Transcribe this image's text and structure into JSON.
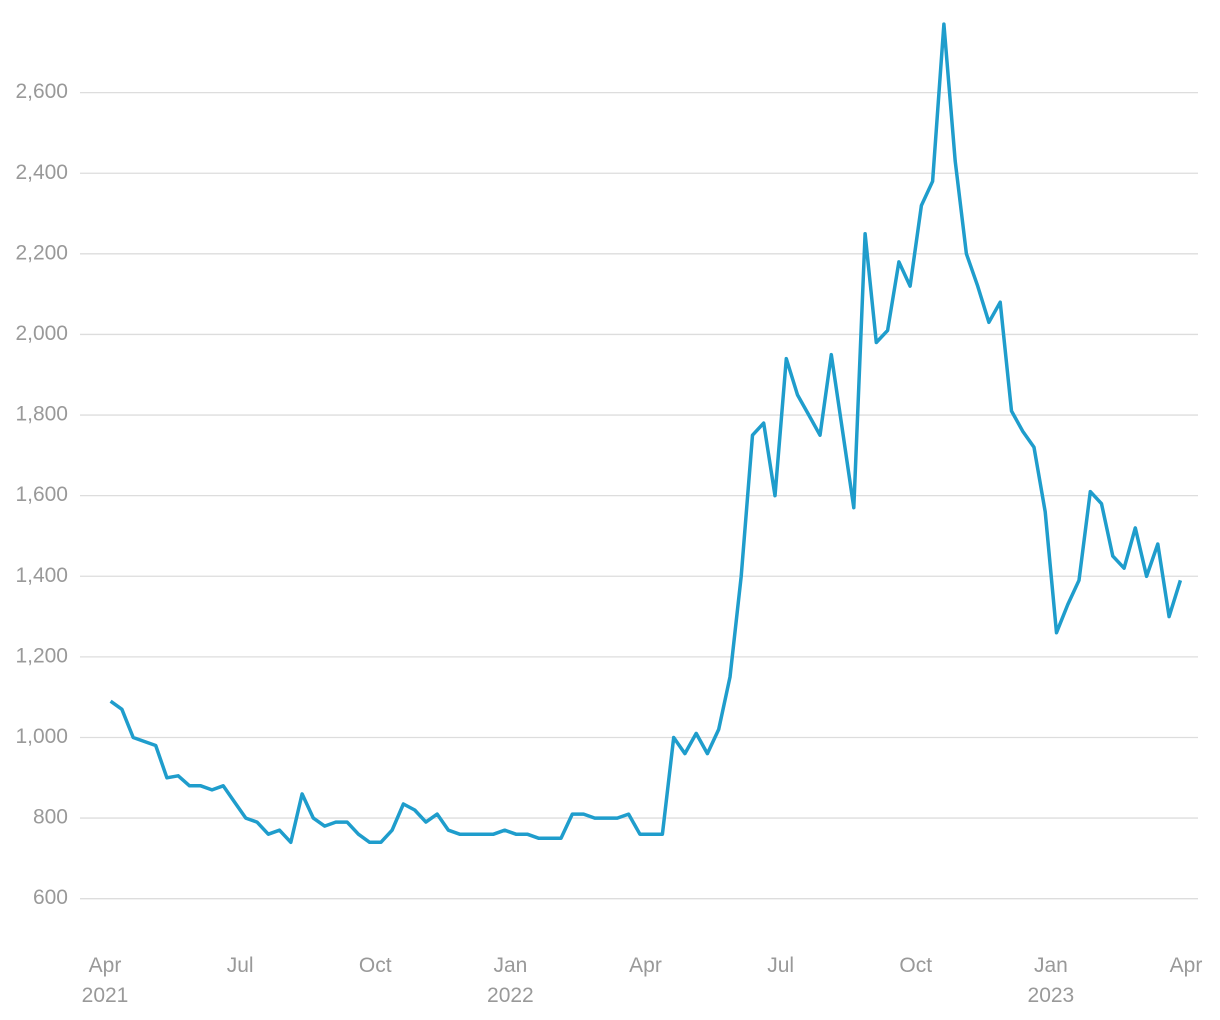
{
  "chart_data": {
    "type": "line",
    "x": [
      "2021-04",
      "2021-04",
      "2021-04",
      "2021-04",
      "2021-05",
      "2021-05",
      "2021-05",
      "2021-05",
      "2021-06",
      "2021-06",
      "2021-06",
      "2021-06",
      "2021-07",
      "2021-07",
      "2021-07",
      "2021-07",
      "2021-08",
      "2021-08",
      "2021-08",
      "2021-08",
      "2021-09",
      "2021-09",
      "2021-09",
      "2021-09",
      "2021-10",
      "2021-10",
      "2021-10",
      "2021-10",
      "2021-11",
      "2021-11",
      "2021-11",
      "2021-11",
      "2021-12",
      "2021-12",
      "2021-12",
      "2021-12",
      "2022-01",
      "2022-01",
      "2022-01",
      "2022-01",
      "2022-02",
      "2022-02",
      "2022-02",
      "2022-02",
      "2022-03",
      "2022-03",
      "2022-03",
      "2022-03",
      "2022-04",
      "2022-04",
      "2022-04",
      "2022-04",
      "2022-05",
      "2022-05",
      "2022-05",
      "2022-05",
      "2022-06",
      "2022-06",
      "2022-06",
      "2022-06",
      "2022-07",
      "2022-07",
      "2022-07",
      "2022-07",
      "2022-08",
      "2022-08",
      "2022-08",
      "2022-08",
      "2022-09",
      "2022-09",
      "2022-09",
      "2022-09",
      "2022-10",
      "2022-10",
      "2022-10",
      "2022-10",
      "2022-11",
      "2022-11",
      "2022-11",
      "2022-11",
      "2022-12",
      "2022-12",
      "2022-12",
      "2022-12",
      "2023-01",
      "2023-01",
      "2023-01",
      "2023-01",
      "2023-02",
      "2023-02",
      "2023-02",
      "2023-02",
      "2023-03",
      "2023-03",
      "2023-03",
      "2023-03"
    ],
    "series": [
      {
        "color": "#1f9dcc",
        "values": [
          1090,
          1070,
          1000,
          990,
          980,
          900,
          905,
          880,
          880,
          870,
          880,
          840,
          800,
          790,
          760,
          770,
          740,
          860,
          800,
          780,
          790,
          790,
          760,
          740,
          740,
          770,
          835,
          820,
          790,
          810,
          770,
          760,
          760,
          760,
          760,
          770,
          760,
          760,
          750,
          750,
          750,
          810,
          810,
          800,
          800,
          800,
          810,
          760,
          760,
          760,
          1000,
          960,
          1010,
          960,
          1020,
          1150,
          1400,
          1750,
          1780,
          1600,
          1940,
          1850,
          1800,
          1750,
          1950,
          1760,
          1570,
          2250,
          1980,
          2010,
          2180,
          2120,
          2320,
          2380,
          2770,
          2430,
          2200,
          2120,
          2030,
          2080,
          1810,
          1760,
          1720,
          1560,
          1260,
          1330,
          1390,
          1610,
          1580,
          1450,
          1420,
          1520,
          1400,
          1480,
          1300,
          1390
        ]
      }
    ],
    "xlim": [
      "2021-04",
      "2023-04"
    ],
    "xticks": [
      {
        "value": "2021-04",
        "label": "Apr 2021"
      },
      {
        "value": "2021-07",
        "label": "Jul"
      },
      {
        "value": "2021-10",
        "label": "Oct"
      },
      {
        "value": "2022-01",
        "label": "Jan 2022"
      },
      {
        "value": "2022-04",
        "label": "Apr"
      },
      {
        "value": "2022-07",
        "label": "Jul"
      },
      {
        "value": "2022-10",
        "label": "Oct"
      },
      {
        "value": "2023-01",
        "label": "Jan 2023"
      },
      {
        "value": "2023-04",
        "label": "Apr"
      }
    ],
    "ylim": [
      500,
      2800
    ],
    "yticks": [
      {
        "value": 600,
        "label": "600"
      },
      {
        "value": 800,
        "label": "800"
      },
      {
        "value": 1000,
        "label": "1,000"
      },
      {
        "value": 1200,
        "label": "1,200"
      },
      {
        "value": 1400,
        "label": "1,400"
      },
      {
        "value": 1600,
        "label": "1,600"
      },
      {
        "value": 1800,
        "label": "1,800"
      },
      {
        "value": 2000,
        "label": "2,000"
      },
      {
        "value": 2200,
        "label": "2,200"
      },
      {
        "value": 2400,
        "label": "2,400"
      },
      {
        "value": 2600,
        "label": "2,600"
      }
    ],
    "grid": true
  }
}
